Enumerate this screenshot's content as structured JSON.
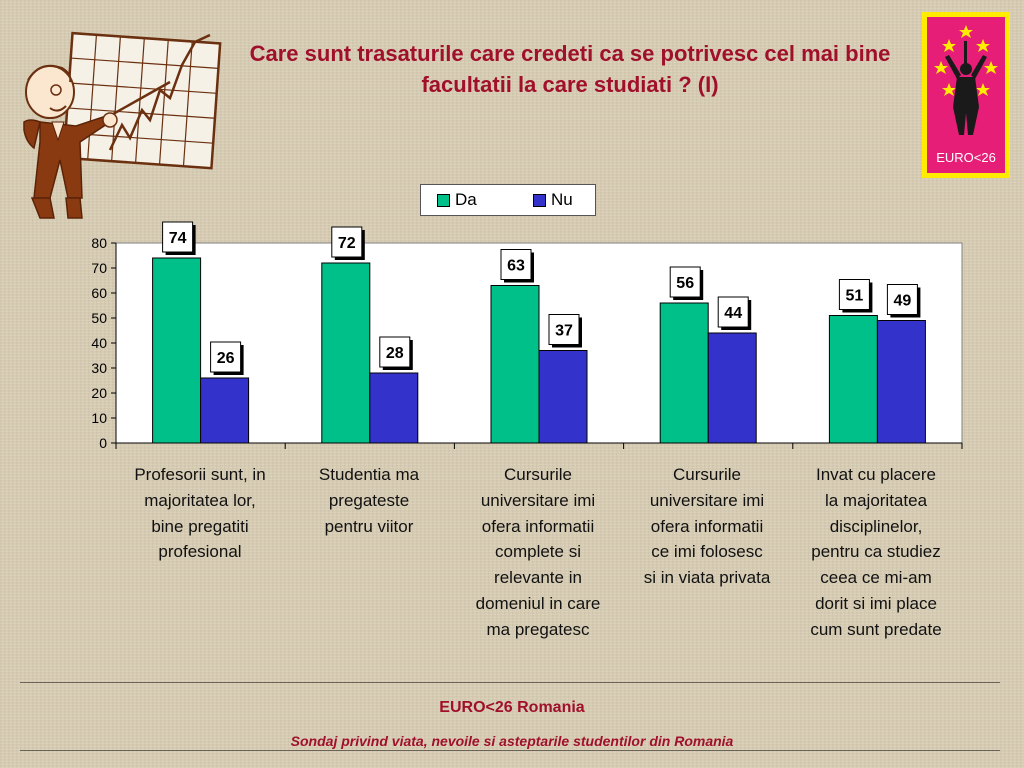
{
  "title": "Care sunt trasaturile care credeti ca se potrivesc cel mai bine facultatii la care studiati ? (I)",
  "logo": {
    "text": "EURO<26",
    "icon": "euro26-logo-icon",
    "frame_color": "#ffec00",
    "fill_color": "#e61e78"
  },
  "illustration": {
    "icon": "professor-with-chart-icon"
  },
  "chart_data": {
    "type": "bar",
    "categories": [
      "Profesorii sunt, in majoritatea lor, bine pregatiti profesional",
      "Studentia ma pregateste pentru viitor",
      "Cursurile universitare imi ofera informatii complete si relevante in domeniul in care ma pregatesc",
      "Cursurile universitare imi ofera informatii ce imi folosesc si in viata privata",
      "Invat cu placere la majoritatea disciplinelor, pentru ca studiez ceea ce mi-am dorit si imi place cum sunt predate"
    ],
    "category_lines": [
      [
        "Profesorii sunt, in",
        "majoritatea lor,",
        "bine pregatiti",
        "profesional"
      ],
      [
        "Studentia ma",
        "pregateste",
        "pentru viitor"
      ],
      [
        "Cursurile",
        "universitare imi",
        "ofera informatii",
        "complete si",
        "relevante in",
        "domeniul in care",
        "ma pregatesc"
      ],
      [
        "Cursurile",
        "universitare imi",
        "ofera informatii",
        "ce imi folosesc",
        "si in viata privata"
      ],
      [
        "Invat cu placere",
        "la majoritatea",
        "disciplinelor,",
        "pentru ca studiez",
        "ceea ce mi-am",
        "dorit si imi place",
        "cum sunt predate"
      ]
    ],
    "series": [
      {
        "name": "Da",
        "values": [
          74,
          72,
          63,
          56,
          51
        ],
        "color": "#00c08a"
      },
      {
        "name": "Nu",
        "values": [
          26,
          28,
          37,
          44,
          49
        ],
        "color": "#3333cc"
      }
    ],
    "ylim": [
      0,
      80
    ],
    "yticks": [
      "0",
      "10",
      "20",
      "30",
      "40",
      "50",
      "60",
      "70",
      "80"
    ],
    "grid": false,
    "legend_position": "top-center",
    "data_labels": true,
    "plot_background": "#ffffff"
  },
  "footer": {
    "title": "EURO<26 Romania",
    "subtitle": "Sondaj privind viata, nevoile si asteptarile studentilor din Romania",
    "text_color": "#a0102a"
  }
}
